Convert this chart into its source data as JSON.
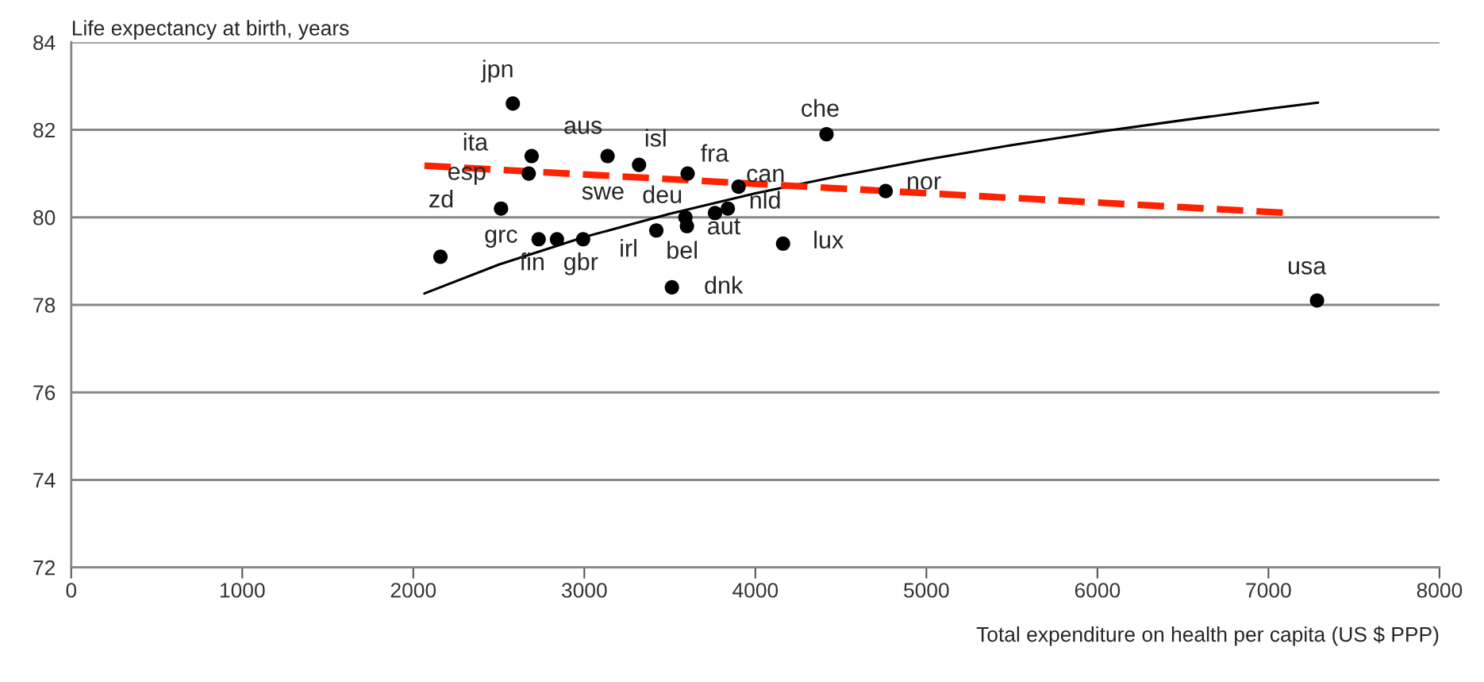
{
  "chart_data": {
    "type": "scatter",
    "ylabel": "Life expectancy at birth, years",
    "xlabel": "Total expenditure on health per capita (US $ PPP)",
    "xlim": [
      0,
      8000
    ],
    "xticks": [
      0,
      1000,
      2000,
      3000,
      4000,
      5000,
      6000,
      7000,
      8000
    ],
    "ylim": [
      72,
      84
    ],
    "yticks": [
      72,
      74,
      76,
      78,
      80,
      82,
      84
    ],
    "grid": "y",
    "legend": false,
    "marker": "circle",
    "series": [
      {
        "color": "#000000",
        "x": [
          2582,
          2692,
          2675,
          3136,
          3320,
          3604,
          3902,
          3839,
          3764,
          3591,
          3600,
          3421,
          2513,
          2159,
          2733,
          2840,
          2993,
          3512,
          4162,
          4416,
          4762,
          7284
        ],
        "values": [
          82.6,
          81.4,
          81.0,
          81.4,
          81.2,
          81.0,
          80.7,
          80.2,
          80.1,
          80.0,
          79.8,
          79.7,
          80.2,
          79.1,
          79.5,
          79.5,
          79.5,
          78.4,
          79.4,
          81.9,
          80.6,
          78.1
        ]
      },
      {
        "type": "line",
        "color": "#000000",
        "line_style": "solid",
        "marker": "none",
        "x": [
          2065,
          2500,
          3000,
          3500,
          4000,
          4500,
          5000,
          5500,
          6000,
          6500,
          7000,
          7290
        ],
        "values": [
          78.26,
          78.92,
          79.55,
          80.08,
          80.55,
          80.95,
          81.32,
          81.65,
          81.95,
          82.22,
          82.48,
          82.62
        ]
      },
      {
        "type": "line",
        "color": "#ff2200",
        "line_style": "dashed",
        "marker": "none",
        "x": [
          2065,
          7108
        ],
        "values": [
          81.18,
          80.1
        ]
      }
    ],
    "annotations": [
      {
        "text": "jpn",
        "x": 2582,
        "y": 82.6
      },
      {
        "text": "ita",
        "x": 2692,
        "y": 81.4
      },
      {
        "text": "esp",
        "x": 2675,
        "y": 81.0
      },
      {
        "text": "zd",
        "x": 2159,
        "y": 79.1
      },
      {
        "text": "aus",
        "x": 3136,
        "y": 81.4
      },
      {
        "text": "isl",
        "x": 3320,
        "y": 81.2
      },
      {
        "text": "fra",
        "x": 3604,
        "y": 81.0
      },
      {
        "text": "can",
        "x": 3902,
        "y": 80.7
      },
      {
        "text": "swe",
        "x": 2840,
        "y": 79.5
      },
      {
        "text": "deu",
        "x": 3591,
        "y": 80.0
      },
      {
        "text": "nld",
        "x": 3839,
        "y": 80.2
      },
      {
        "text": "aut",
        "x": 3764,
        "y": 80.1
      },
      {
        "text": "grc",
        "x": 2513,
        "y": 80.2
      },
      {
        "text": "fin",
        "x": 2733,
        "y": 79.5
      },
      {
        "text": "gbr",
        "x": 2993,
        "y": 79.5
      },
      {
        "text": "irl",
        "x": 3421,
        "y": 79.7
      },
      {
        "text": "bel",
        "x": 3600,
        "y": 79.8
      },
      {
        "text": "lux",
        "x": 4162,
        "y": 79.4
      },
      {
        "text": "dnk",
        "x": 3512,
        "y": 78.4
      },
      {
        "text": "che",
        "x": 4416,
        "y": 81.9
      },
      {
        "text": "nor",
        "x": 4762,
        "y": 80.6
      },
      {
        "text": "usa",
        "x": 7284,
        "y": 78.1
      }
    ]
  }
}
